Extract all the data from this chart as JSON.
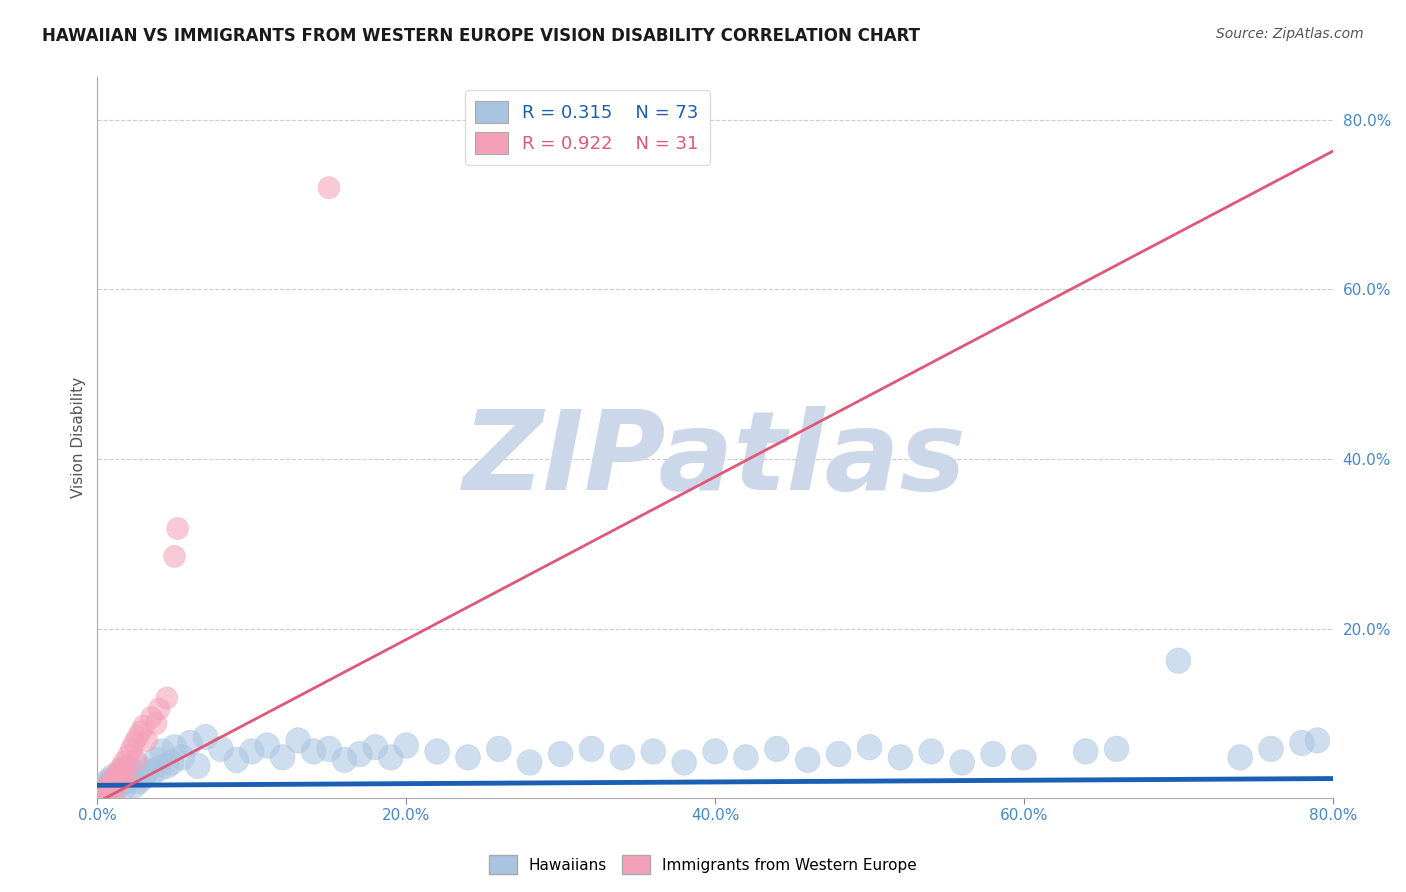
{
  "title": "HAWAIIAN VS IMMIGRANTS FROM WESTERN EUROPE VISION DISABILITY CORRELATION CHART",
  "source": "Source: ZipAtlas.com",
  "ylabel": "Vision Disability",
  "xlabel": "",
  "watermark": "ZIPatlas",
  "xlim": [
    0.0,
    0.8
  ],
  "ylim": [
    0.0,
    0.85
  ],
  "xticks": [
    0.0,
    0.2,
    0.4,
    0.6,
    0.8
  ],
  "yticks": [
    0.2,
    0.4,
    0.6,
    0.8
  ],
  "xticklabels": [
    "0.0%",
    "20.0%",
    "40.0%",
    "60.0%",
    "80.0%"
  ],
  "yticklabels": [
    "20.0%",
    "40.0%",
    "60.0%",
    "80.0%"
  ],
  "blue_R": 0.315,
  "blue_N": 73,
  "pink_R": 0.922,
  "pink_N": 31,
  "blue_color": "#a8c4e0",
  "pink_color": "#f4a0b8",
  "blue_line_color": "#1a5fb4",
  "pink_line_color": "#e05878",
  "blue_line_slope": 0.01,
  "blue_line_intercept": 0.015,
  "pink_line_slope": 0.96,
  "pink_line_intercept": -0.005,
  "blue_scatter": [
    [
      0.003,
      0.01
    ],
    [
      0.005,
      0.015
    ],
    [
      0.006,
      0.008
    ],
    [
      0.007,
      0.02
    ],
    [
      0.008,
      0.012
    ],
    [
      0.009,
      0.018
    ],
    [
      0.01,
      0.025
    ],
    [
      0.011,
      0.015
    ],
    [
      0.012,
      0.01
    ],
    [
      0.013,
      0.022
    ],
    [
      0.015,
      0.018
    ],
    [
      0.016,
      0.03
    ],
    [
      0.017,
      0.012
    ],
    [
      0.018,
      0.025
    ],
    [
      0.019,
      0.02
    ],
    [
      0.02,
      0.035
    ],
    [
      0.022,
      0.028
    ],
    [
      0.024,
      0.015
    ],
    [
      0.025,
      0.04
    ],
    [
      0.027,
      0.02
    ],
    [
      0.03,
      0.025
    ],
    [
      0.032,
      0.032
    ],
    [
      0.035,
      0.028
    ],
    [
      0.038,
      0.045
    ],
    [
      0.04,
      0.035
    ],
    [
      0.042,
      0.055
    ],
    [
      0.045,
      0.038
    ],
    [
      0.048,
      0.042
    ],
    [
      0.05,
      0.06
    ],
    [
      0.055,
      0.048
    ],
    [
      0.06,
      0.065
    ],
    [
      0.065,
      0.038
    ],
    [
      0.07,
      0.072
    ],
    [
      0.08,
      0.058
    ],
    [
      0.09,
      0.045
    ],
    [
      0.1,
      0.055
    ],
    [
      0.11,
      0.062
    ],
    [
      0.12,
      0.048
    ],
    [
      0.13,
      0.068
    ],
    [
      0.14,
      0.055
    ],
    [
      0.15,
      0.058
    ],
    [
      0.16,
      0.045
    ],
    [
      0.17,
      0.052
    ],
    [
      0.18,
      0.06
    ],
    [
      0.19,
      0.048
    ],
    [
      0.2,
      0.062
    ],
    [
      0.22,
      0.055
    ],
    [
      0.24,
      0.048
    ],
    [
      0.26,
      0.058
    ],
    [
      0.28,
      0.042
    ],
    [
      0.3,
      0.052
    ],
    [
      0.32,
      0.058
    ],
    [
      0.34,
      0.048
    ],
    [
      0.36,
      0.055
    ],
    [
      0.38,
      0.042
    ],
    [
      0.4,
      0.055
    ],
    [
      0.42,
      0.048
    ],
    [
      0.44,
      0.058
    ],
    [
      0.46,
      0.045
    ],
    [
      0.48,
      0.052
    ],
    [
      0.5,
      0.06
    ],
    [
      0.52,
      0.048
    ],
    [
      0.54,
      0.055
    ],
    [
      0.56,
      0.042
    ],
    [
      0.58,
      0.052
    ],
    [
      0.6,
      0.048
    ],
    [
      0.64,
      0.055
    ],
    [
      0.66,
      0.058
    ],
    [
      0.7,
      0.162
    ],
    [
      0.74,
      0.048
    ],
    [
      0.76,
      0.058
    ],
    [
      0.78,
      0.065
    ],
    [
      0.79,
      0.068
    ]
  ],
  "pink_scatter": [
    [
      0.003,
      0.005
    ],
    [
      0.005,
      0.008
    ],
    [
      0.006,
      0.012
    ],
    [
      0.007,
      0.015
    ],
    [
      0.008,
      0.01
    ],
    [
      0.009,
      0.018
    ],
    [
      0.01,
      0.022
    ],
    [
      0.011,
      0.008
    ],
    [
      0.012,
      0.025
    ],
    [
      0.013,
      0.03
    ],
    [
      0.014,
      0.02
    ],
    [
      0.015,
      0.035
    ],
    [
      0.016,
      0.025
    ],
    [
      0.017,
      0.042
    ],
    [
      0.018,
      0.038
    ],
    [
      0.019,
      0.028
    ],
    [
      0.02,
      0.05
    ],
    [
      0.022,
      0.058
    ],
    [
      0.024,
      0.065
    ],
    [
      0.025,
      0.045
    ],
    [
      0.026,
      0.072
    ],
    [
      0.028,
      0.078
    ],
    [
      0.03,
      0.085
    ],
    [
      0.032,
      0.068
    ],
    [
      0.035,
      0.095
    ],
    [
      0.038,
      0.088
    ],
    [
      0.04,
      0.105
    ],
    [
      0.045,
      0.118
    ],
    [
      0.05,
      0.285
    ],
    [
      0.052,
      0.318
    ],
    [
      0.15,
      0.72
    ]
  ],
  "grid_color": "#cccccc",
  "background_color": "#ffffff",
  "title_fontsize": 12,
  "source_fontsize": 10,
  "axis_label_fontsize": 11,
  "tick_fontsize": 11,
  "watermark_color": "#ccd8ea",
  "watermark_fontsize": 80
}
